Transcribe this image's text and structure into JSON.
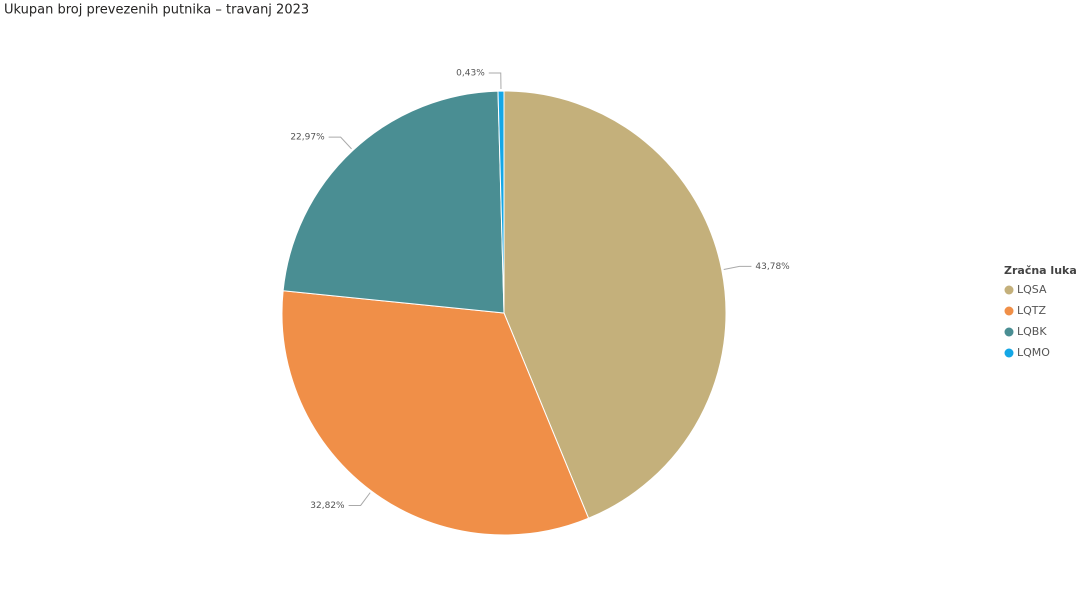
{
  "chart_data": {
    "type": "pie",
    "title": "Ukupan broj prevezenih putnika – travanj 2023",
    "categories": [
      "LQSA",
      "LQTZ",
      "LQBK",
      "LQMO"
    ],
    "values": [
      43.78,
      32.82,
      22.97,
      0.43
    ],
    "value_labels": [
      "43,78%",
      "32,82%",
      "22,97%",
      "0,43%"
    ],
    "colors": [
      "#c4b07b",
      "#f08f48",
      "#4a8e93",
      "#14a7e6"
    ],
    "legend_title": "Zračna luka",
    "legend_position": "right"
  }
}
